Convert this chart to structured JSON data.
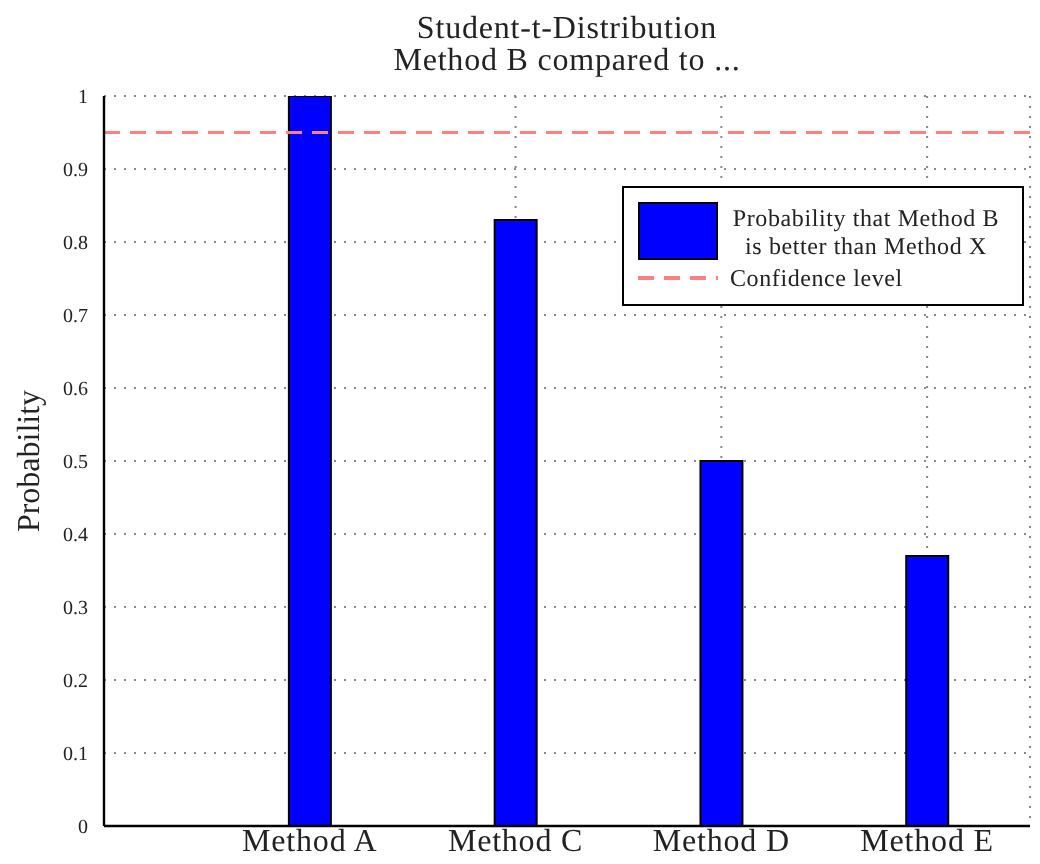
{
  "chart_data": {
    "type": "bar",
    "title": "Student-t-Distribution",
    "subtitle": "Method B compared to ...",
    "ylabel": "Probability",
    "categories": [
      "Method A",
      "Method C",
      "Method D",
      "Method E"
    ],
    "series": [
      {
        "name": "Probability that Method B is better than Method X",
        "color": "#0000ff",
        "values": [
          1,
          0.83,
          0.5,
          0.37
        ]
      }
    ],
    "ylim": [
      0,
      1
    ],
    "yticks": [
      0,
      0.1,
      0.2,
      0.3,
      0.4,
      0.5,
      0.6,
      0.7,
      0.8,
      0.9,
      1
    ],
    "ref_lines": [
      {
        "axis": "y",
        "value": 0.95,
        "label": "Confidence level",
        "color": "#ff8080",
        "line_style": "dashed"
      }
    ],
    "grid": true,
    "legend": "top right"
  }
}
